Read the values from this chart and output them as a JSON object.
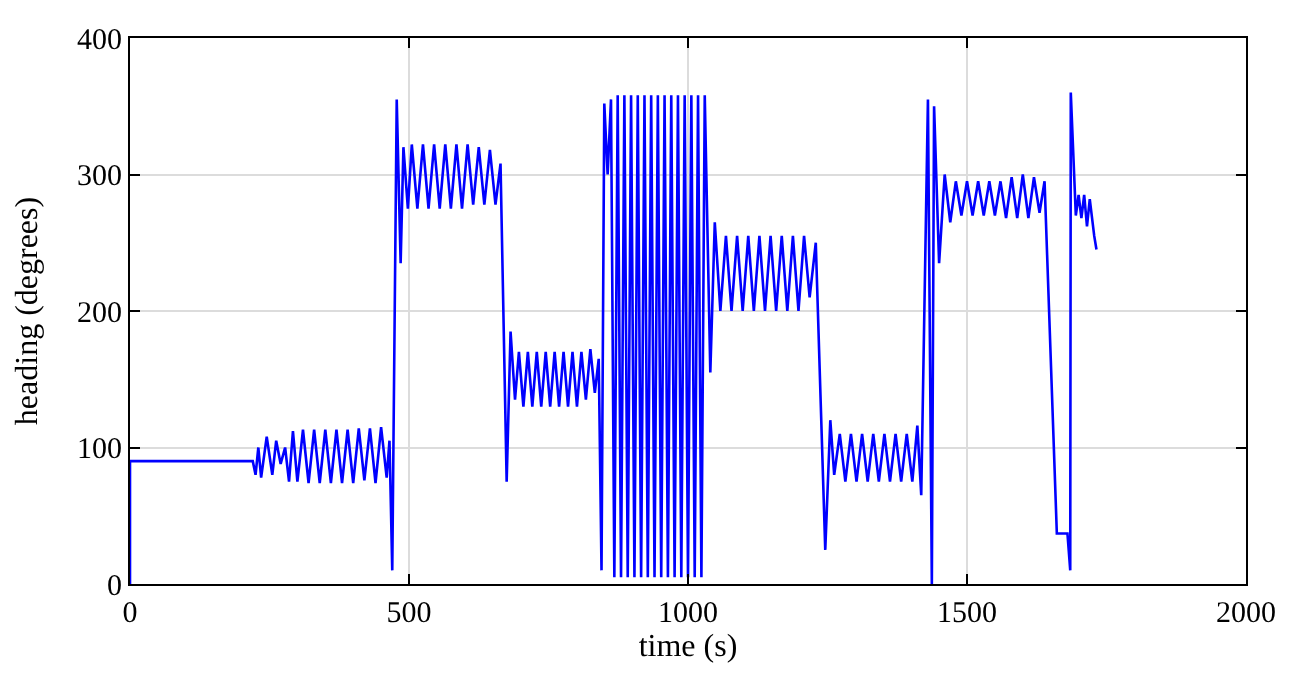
{
  "chart_data": {
    "type": "line",
    "xlabel": "time (s)",
    "ylabel": "heading (degrees)",
    "xlim": [
      0,
      2000
    ],
    "xticks": [
      0,
      500,
      1000,
      1500,
      2000
    ],
    "ylim": [
      0,
      400
    ],
    "yticks": [
      0,
      100,
      200,
      300,
      400
    ],
    "grid": true,
    "line_style": "solid",
    "series": [
      {
        "color": "#0000ff",
        "x": [
          0,
          0,
          220,
          225,
          230,
          235,
          245,
          255,
          262,
          270,
          278,
          285,
          292,
          300,
          310,
          320,
          330,
          340,
          350,
          360,
          370,
          380,
          390,
          400,
          410,
          420,
          430,
          440,
          450,
          460,
          465,
          470,
          478,
          485,
          490,
          498,
          505,
          515,
          525,
          535,
          545,
          555,
          565,
          575,
          585,
          595,
          605,
          615,
          625,
          635,
          645,
          655,
          664,
          675,
          682,
          690,
          697,
          705,
          713,
          721,
          729,
          737,
          745,
          753,
          761,
          769,
          777,
          785,
          793,
          801,
          809,
          817,
          825,
          833,
          840,
          845,
          850,
          856,
          862,
          868,
          874,
          880,
          886,
          892,
          898,
          904,
          910,
          916,
          922,
          928,
          934,
          940,
          946,
          952,
          958,
          964,
          970,
          976,
          982,
          988,
          994,
          1000,
          1006,
          1012,
          1018,
          1024,
          1030,
          1040,
          1048,
          1058,
          1068,
          1078,
          1088,
          1098,
          1108,
          1118,
          1128,
          1138,
          1148,
          1158,
          1168,
          1178,
          1188,
          1198,
          1208,
          1218,
          1229,
          1246,
          1255,
          1262,
          1272,
          1282,
          1292,
          1302,
          1312,
          1322,
          1332,
          1342,
          1352,
          1362,
          1372,
          1382,
          1392,
          1402,
          1411,
          1418,
          1430,
          1437,
          1441,
          1450,
          1460,
          1470,
          1480,
          1490,
          1500,
          1510,
          1520,
          1530,
          1540,
          1550,
          1560,
          1570,
          1580,
          1590,
          1600,
          1610,
          1620,
          1630,
          1639,
          1661,
          1680,
          1685,
          1686,
          1695,
          1700,
          1705,
          1710,
          1715,
          1720,
          1728,
          1732
        ],
        "values": [
          0,
          90,
          90,
          80,
          100,
          78,
          108,
          80,
          105,
          88,
          100,
          75,
          112,
          75,
          113,
          74,
          113,
          74,
          113,
          74,
          113,
          74,
          113,
          74,
          114,
          76,
          114,
          74,
          115,
          78,
          105,
          10,
          355,
          235,
          320,
          275,
          322,
          275,
          322,
          275,
          322,
          275,
          322,
          275,
          322,
          275,
          322,
          278,
          320,
          278,
          318,
          278,
          308,
          75,
          185,
          135,
          170,
          130,
          170,
          130,
          170,
          130,
          170,
          130,
          170,
          130,
          170,
          130,
          170,
          130,
          170,
          135,
          172,
          140,
          165,
          10,
          352,
          300,
          355,
          5,
          358,
          5,
          358,
          5,
          358,
          5,
          358,
          5,
          358,
          5,
          358,
          5,
          358,
          5,
          358,
          5,
          358,
          5,
          358,
          5,
          358,
          5,
          358,
          5,
          358,
          5,
          358,
          155,
          265,
          200,
          255,
          200,
          255,
          200,
          255,
          200,
          255,
          200,
          255,
          200,
          255,
          200,
          255,
          200,
          255,
          210,
          250,
          25,
          120,
          80,
          110,
          75,
          110,
          75,
          110,
          75,
          110,
          75,
          110,
          75,
          110,
          75,
          110,
          75,
          116,
          65,
          355,
          0,
          350,
          235,
          300,
          265,
          295,
          270,
          295,
          270,
          295,
          270,
          295,
          270,
          295,
          268,
          298,
          268,
          300,
          268,
          298,
          272,
          295,
          37,
          37,
          10,
          360,
          270,
          285,
          268,
          285,
          262,
          282,
          255,
          245
        ]
      }
    ]
  }
}
